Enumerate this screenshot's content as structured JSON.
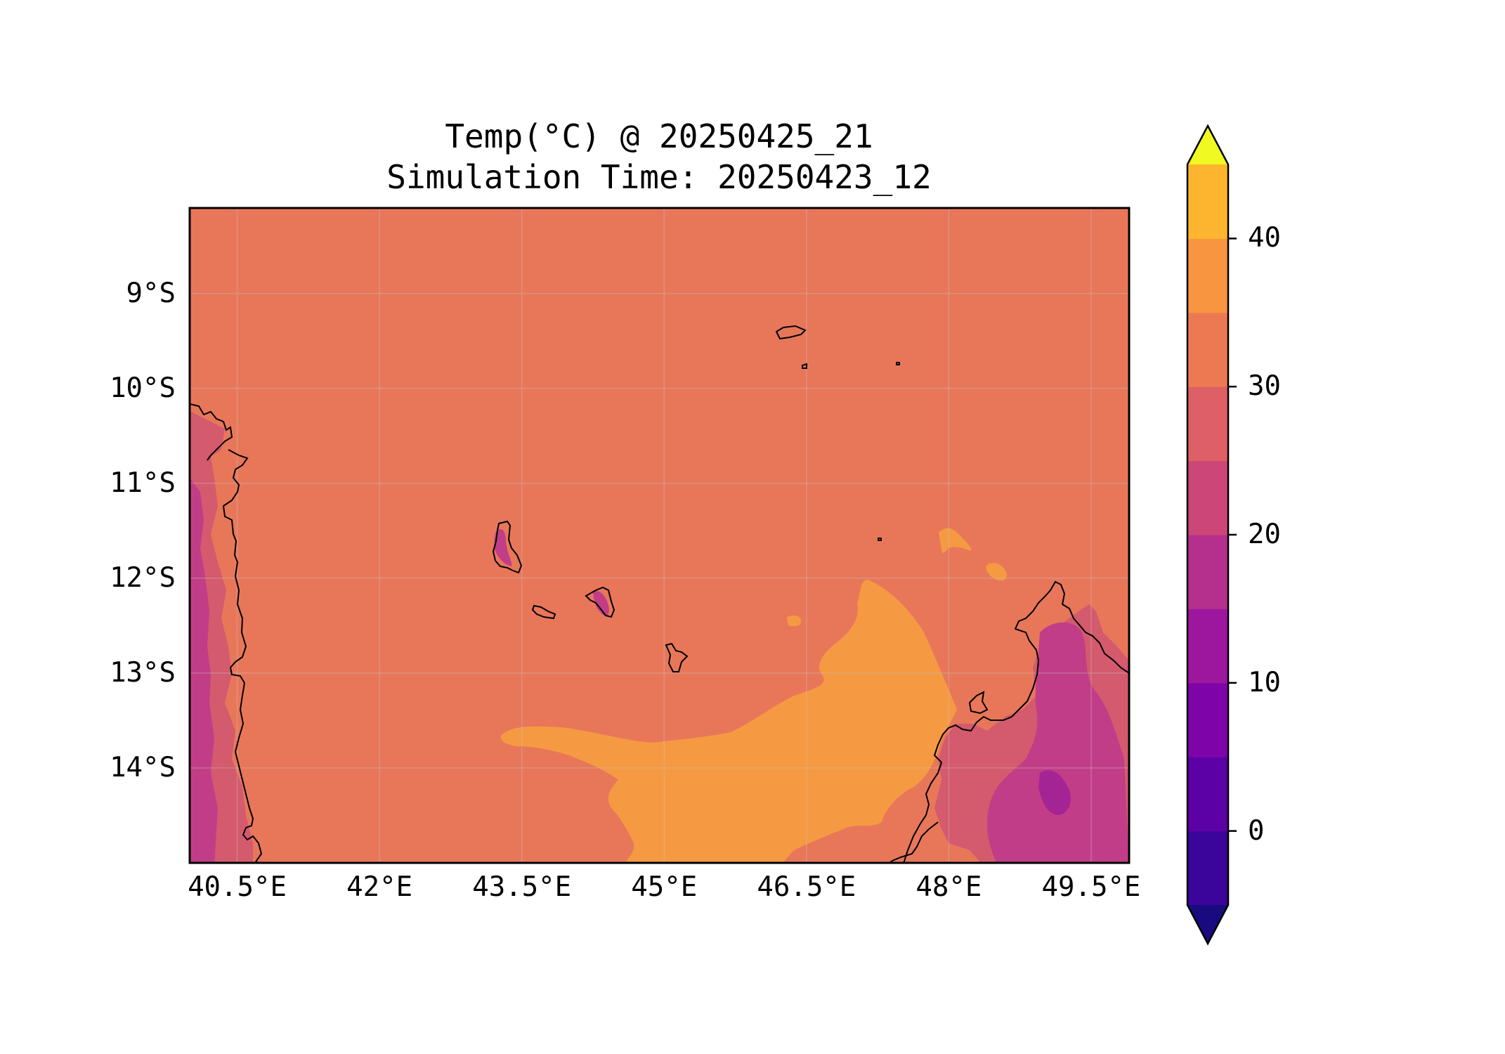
{
  "figure": {
    "title_line1": "Temp(°C) @ 20250425_21",
    "title_line2": "Simulation Time: 20250423_12"
  },
  "map": {
    "lon_range": [
      40.0,
      49.9
    ],
    "lat_range": [
      -15.0,
      -8.1
    ],
    "lat_ticks": [
      {
        "value": -9,
        "label": "9°S"
      },
      {
        "value": -10,
        "label": "10°S"
      },
      {
        "value": -11,
        "label": "11°S"
      },
      {
        "value": -12,
        "label": "12°S"
      },
      {
        "value": -13,
        "label": "13°S"
      },
      {
        "value": -14,
        "label": "14°S"
      }
    ],
    "lon_ticks": [
      {
        "value": 40.5,
        "label": "40.5°E"
      },
      {
        "value": 42.0,
        "label": "42°E"
      },
      {
        "value": 43.5,
        "label": "43.5°E"
      },
      {
        "value": 45.0,
        "label": "45°E"
      },
      {
        "value": 46.5,
        "label": "46.5°E"
      },
      {
        "value": 48.0,
        "label": "48°E"
      },
      {
        "value": 49.5,
        "label": "49.5°E"
      }
    ],
    "gridlines": true,
    "background_level_color": "#e8775a",
    "warm_region_color": "#f59a42",
    "land_cool_colors": [
      "#d45a6e",
      "#c23d87",
      "#a52495"
    ]
  },
  "colorbar": {
    "min": -5,
    "max": 45,
    "extend": "both",
    "levels": [
      -5,
      0,
      5,
      10,
      15,
      20,
      25,
      30,
      35,
      40,
      45
    ],
    "colors": [
      "#3b049a",
      "#5c01a6",
      "#7e03a8",
      "#9c179e",
      "#b52f8c",
      "#cc4778",
      "#de5f65",
      "#ed7953",
      "#f89540",
      "#fdb42f",
      "#f0e42a"
    ],
    "under_color": "#1a0a80",
    "over_color": "#f0f921",
    "ticks": [
      {
        "value": 0,
        "label": "0"
      },
      {
        "value": 10,
        "label": "10"
      },
      {
        "value": 20,
        "label": "20"
      },
      {
        "value": 30,
        "label": "30"
      },
      {
        "value": 40,
        "label": "40"
      }
    ]
  }
}
